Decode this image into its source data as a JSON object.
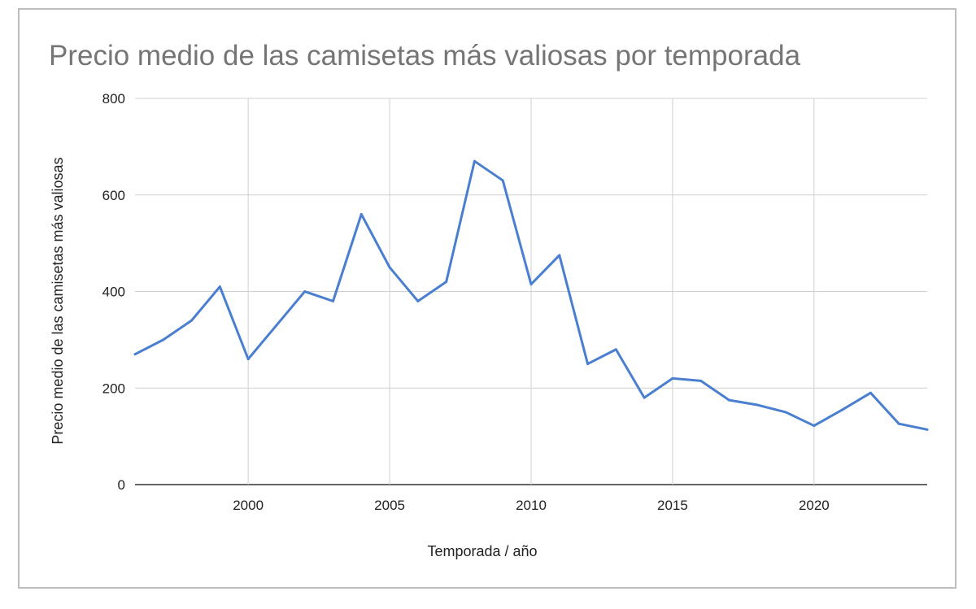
{
  "chart_data": {
    "type": "line",
    "title": "Precio medio de las camisetas más valiosas por temporada",
    "xlabel": "Temporada / año",
    "ylabel": "Precio medio de las camisetas más valiosas",
    "xlim": [
      1996,
      2024
    ],
    "ylim": [
      0,
      800
    ],
    "xticks": [
      "2000",
      "2005",
      "2010",
      "2015",
      "2020"
    ],
    "yticks": [
      "0",
      "200",
      "400",
      "600",
      "800"
    ],
    "grid": true,
    "legend": "none",
    "colors": {
      "line": "#4a7fd0",
      "grid": "#d0d0d0",
      "title": "#757575"
    },
    "x": [
      1996,
      1997,
      1998,
      1999,
      2000,
      2001,
      2002,
      2003,
      2004,
      2005,
      2006,
      2007,
      2008,
      2009,
      2010,
      2011,
      2012,
      2013,
      2014,
      2015,
      2016,
      2017,
      2018,
      2019,
      2020,
      2021,
      2022,
      2023,
      2024
    ],
    "series": [
      {
        "values": [
          270,
          300,
          340,
          410,
          260,
          330,
          400,
          380,
          560,
          450,
          380,
          420,
          670,
          630,
          415,
          475,
          250,
          280,
          180,
          220,
          215,
          175,
          165,
          150,
          122,
          155,
          190,
          126,
          114
        ]
      }
    ]
  }
}
